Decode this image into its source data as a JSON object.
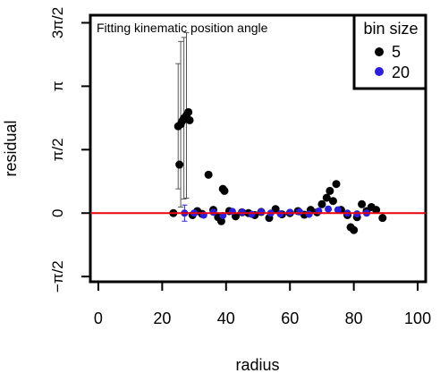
{
  "chart_data": {
    "type": "scatter",
    "title": "Fitting kinematic position angle",
    "xlabel": "radius",
    "ylabel": "residual",
    "xlim": [
      -2.5,
      102.5
    ],
    "ylim": [
      -1.7,
      4.9
    ],
    "x_ticks": [
      {
        "value": 0,
        "label": "0"
      },
      {
        "value": 20,
        "label": "20"
      },
      {
        "value": 40,
        "label": "40"
      },
      {
        "value": 60,
        "label": "60"
      },
      {
        "value": 80,
        "label": "80"
      },
      {
        "value": 100,
        "label": "100"
      }
    ],
    "y_ticks": [
      {
        "value": -1.5708,
        "label": "−π/2"
      },
      {
        "value": 0,
        "label": "0"
      },
      {
        "value": 1.5708,
        "label": "π/2"
      },
      {
        "value": 3.1416,
        "label": "π"
      },
      {
        "value": 4.7124,
        "label": "3π/2"
      }
    ],
    "reference_line": {
      "y": 0,
      "color": "#e8000b"
    },
    "legend": {
      "title": "bin size",
      "position": "top-right"
    },
    "series": [
      {
        "name": "5",
        "color": "#000000",
        "points": [
          {
            "x": 23.5,
            "y": 0.0
          },
          {
            "x": 25.0,
            "y": 2.15,
            "err": 1.55
          },
          {
            "x": 25.4,
            "y": 1.2
          },
          {
            "x": 25.8,
            "y": 2.2,
            "err": 2.05
          },
          {
            "x": 26.3,
            "y": 2.28
          },
          {
            "x": 26.8,
            "y": 2.35,
            "err": 2.0
          },
          {
            "x": 27.6,
            "y": 2.42,
            "err": 2.05
          },
          {
            "x": 28.2,
            "y": 2.5
          },
          {
            "x": 28.6,
            "y": 2.3
          },
          {
            "x": 29.5,
            "y": -0.05
          },
          {
            "x": 31.0,
            "y": 0.05
          },
          {
            "x": 32.5,
            "y": -0.02
          },
          {
            "x": 34.5,
            "y": 0.95
          },
          {
            "x": 36.0,
            "y": 0.08
          },
          {
            "x": 37.5,
            "y": -0.1
          },
          {
            "x": 38.5,
            "y": -0.2
          },
          {
            "x": 39.0,
            "y": 0.6
          },
          {
            "x": 39.5,
            "y": 0.55
          },
          {
            "x": 41.0,
            "y": 0.05
          },
          {
            "x": 43.0,
            "y": -0.08
          },
          {
            "x": 45.0,
            "y": 0.02
          },
          {
            "x": 47.0,
            "y": 0.0
          },
          {
            "x": 49.0,
            "y": -0.05
          },
          {
            "x": 51.0,
            "y": 0.03
          },
          {
            "x": 53.5,
            "y": -0.12
          },
          {
            "x": 55.5,
            "y": 0.1
          },
          {
            "x": 57.5,
            "y": -0.03
          },
          {
            "x": 60.0,
            "y": 0.0
          },
          {
            "x": 62.5,
            "y": 0.05
          },
          {
            "x": 64.5,
            "y": -0.04
          },
          {
            "x": 66.5,
            "y": 0.08
          },
          {
            "x": 68.5,
            "y": 0.02
          },
          {
            "x": 70.0,
            "y": 0.22
          },
          {
            "x": 71.5,
            "y": 0.38
          },
          {
            "x": 72.5,
            "y": 0.55
          },
          {
            "x": 73.5,
            "y": 0.3
          },
          {
            "x": 74.5,
            "y": 0.72
          },
          {
            "x": 76.0,
            "y": 0.08
          },
          {
            "x": 78.0,
            "y": -0.05
          },
          {
            "x": 79.0,
            "y": -0.35
          },
          {
            "x": 80.0,
            "y": -0.42
          },
          {
            "x": 81.0,
            "y": -0.1
          },
          {
            "x": 82.5,
            "y": 0.22
          },
          {
            "x": 84.0,
            "y": 0.05
          },
          {
            "x": 85.5,
            "y": 0.15
          },
          {
            "x": 87.0,
            "y": 0.08
          },
          {
            "x": 89.0,
            "y": -0.12
          }
        ]
      },
      {
        "name": "20",
        "color": "#2a1fe0",
        "points": [
          {
            "x": 27.0,
            "y": 0.0,
            "err": 0.2
          },
          {
            "x": 30.0,
            "y": 0.0
          },
          {
            "x": 33.0,
            "y": -0.05
          },
          {
            "x": 36.0,
            "y": 0.02
          },
          {
            "x": 39.0,
            "y": -0.06
          },
          {
            "x": 42.0,
            "y": 0.04
          },
          {
            "x": 45.0,
            "y": 0.02
          },
          {
            "x": 48.0,
            "y": -0.03
          },
          {
            "x": 51.0,
            "y": 0.03
          },
          {
            "x": 54.0,
            "y": 0.0
          },
          {
            "x": 57.0,
            "y": -0.02
          },
          {
            "x": 60.0,
            "y": 0.02
          },
          {
            "x": 63.0,
            "y": 0.03
          },
          {
            "x": 66.0,
            "y": -0.03
          },
          {
            "x": 69.0,
            "y": 0.05
          },
          {
            "x": 72.0,
            "y": 0.1
          },
          {
            "x": 75.0,
            "y": 0.08
          },
          {
            "x": 78.0,
            "y": 0.0
          },
          {
            "x": 81.0,
            "y": -0.02
          },
          {
            "x": 84.0,
            "y": 0.0
          }
        ]
      }
    ]
  }
}
